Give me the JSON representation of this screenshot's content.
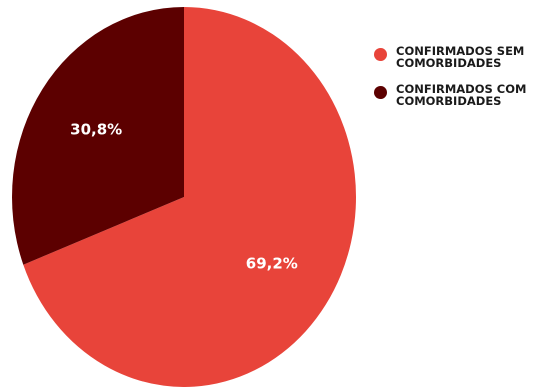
{
  "chart_data": {
    "type": "pie",
    "categories": [
      "CONFIRMADOS SEM\nCOMORBIDADES",
      "CONFIRMADOS COM\nCOMORBIDADES"
    ],
    "values": [
      69.2,
      30.8
    ],
    "data_labels": [
      "69,2%",
      "30,8%"
    ],
    "colors": [
      "#e8443a",
      "#5c0000"
    ],
    "title": "",
    "legend": {
      "position": "right",
      "entries": [
        "CONFIRMADOS SEM\nCOMORBIDADES",
        "CONFIRMADOS COM\nCOMORBIDADES"
      ]
    }
  }
}
